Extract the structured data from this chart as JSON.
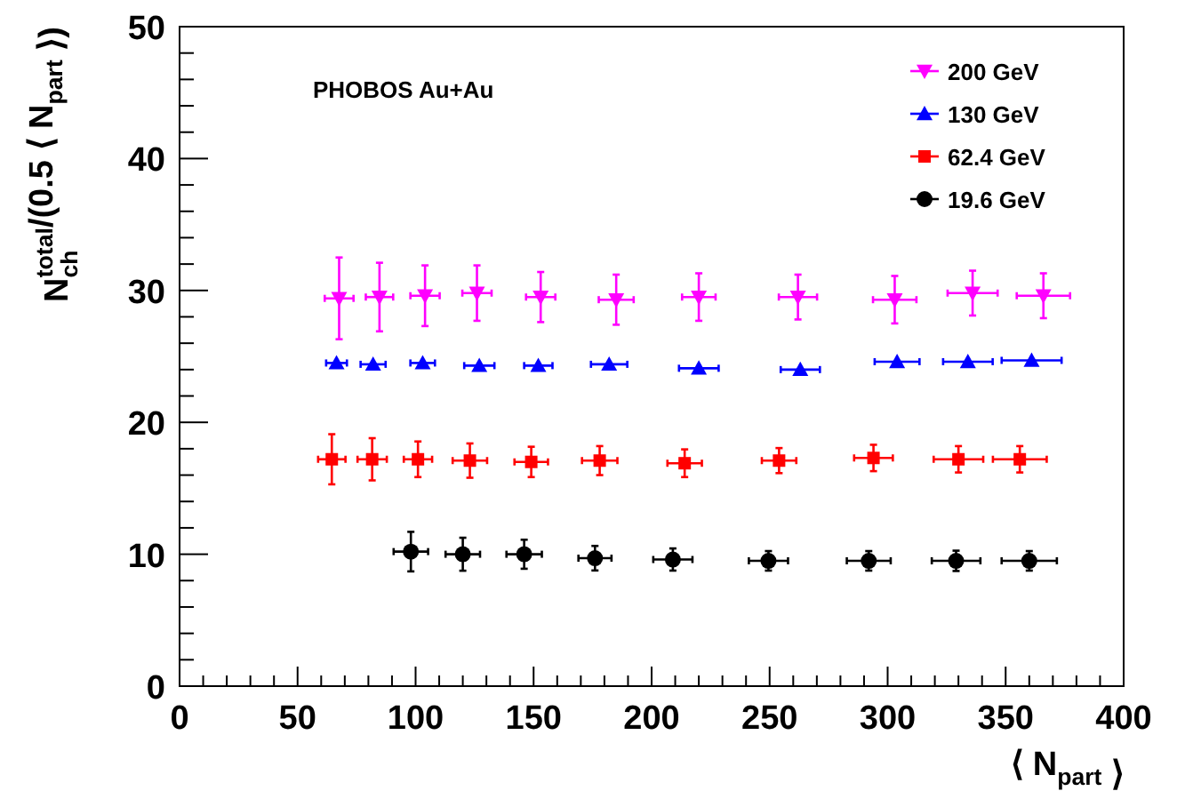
{
  "chart_data": {
    "type": "scatter",
    "xlabel": "⟨ N$_{part}$ ⟩",
    "ylabel": "N$_{ch}$$^{total}$/(0.5 ⟨ N$_{part}$ ⟩)",
    "annotations": [
      "PHOBOS Au+Au"
    ],
    "xlim": [
      0,
      400
    ],
    "ylim": [
      0,
      50
    ],
    "xticks": [
      0,
      {
        "value": 10,
        "label": null
      },
      {
        "value": 20,
        "label": null
      },
      {
        "value": 30,
        "label": null
      },
      {
        "value": 40,
        "label": null
      },
      50,
      {
        "value": 60,
        "label": null
      },
      {
        "value": 70,
        "label": null
      },
      {
        "value": 80,
        "label": null
      },
      {
        "value": 90,
        "label": null
      },
      100,
      {
        "value": 110,
        "label": null
      },
      {
        "value": 120,
        "label": null
      },
      {
        "value": 130,
        "label": null
      },
      {
        "value": 140,
        "label": null
      },
      150,
      {
        "value": 160,
        "label": null
      },
      {
        "value": 170,
        "label": null
      },
      {
        "value": 180,
        "label": null
      },
      {
        "value": 190,
        "label": null
      },
      200,
      {
        "value": 210,
        "label": null
      },
      {
        "value": 220,
        "label": null
      },
      {
        "value": 230,
        "label": null
      },
      {
        "value": 240,
        "label": null
      },
      250,
      {
        "value": 260,
        "label": null
      },
      {
        "value": 270,
        "label": null
      },
      {
        "value": 280,
        "label": null
      },
      {
        "value": 290,
        "label": null
      },
      300,
      {
        "value": 310,
        "label": null
      },
      {
        "value": 320,
        "label": null
      },
      {
        "value": 330,
        "label": null
      },
      {
        "value": 340,
        "label": null
      },
      350,
      {
        "value": 360,
        "label": null
      },
      {
        "value": 370,
        "label": null
      },
      {
        "value": 380,
        "label": null
      },
      {
        "value": 390,
        "label": null
      },
      400
    ],
    "yticks": [
      0,
      {
        "value": 2,
        "label": null
      },
      {
        "value": 4,
        "label": null
      },
      {
        "value": 6,
        "label": null
      },
      {
        "value": 8,
        "label": null
      },
      10,
      {
        "value": 12,
        "label": null
      },
      {
        "value": 14,
        "label": null
      },
      {
        "value": 16,
        "label": null
      },
      {
        "value": 18,
        "label": null
      },
      20,
      {
        "value": 22,
        "label": null
      },
      {
        "value": 24,
        "label": null
      },
      {
        "value": 26,
        "label": null
      },
      {
        "value": 28,
        "label": null
      },
      30,
      {
        "value": 32,
        "label": null
      },
      {
        "value": 34,
        "label": null
      },
      {
        "value": 36,
        "label": null
      },
      {
        "value": 38,
        "label": null
      },
      40,
      {
        "value": 42,
        "label": null
      },
      {
        "value": 44,
        "label": null
      },
      {
        "value": 46,
        "label": null
      },
      {
        "value": 48,
        "label": null
      },
      50
    ],
    "legend": "top right",
    "series": [
      {
        "name": "200 GeV",
        "color": "#ff00ff",
        "marker": "triangle-down",
        "x": [
          67.6,
          84.7,
          104,
          126,
          153,
          185,
          220,
          262,
          303,
          336,
          366
        ],
        "values": [
          29.4,
          29.5,
          29.6,
          29.8,
          29.5,
          29.3,
          29.5,
          29.5,
          29.3,
          29.8,
          29.6
        ],
        "errors": [
          3.1,
          2.6,
          2.3,
          2.1,
          1.9,
          1.9,
          1.8,
          1.7,
          1.8,
          1.7,
          1.7
        ],
        "xerrors": [
          6.1,
          5.8,
          6.2,
          6.2,
          6.2,
          7.4,
          7.1,
          8.1,
          9.2,
          10.6,
          11.3
        ]
      },
      {
        "name": "130 GeV",
        "color": "#0000ff",
        "marker": "triangle",
        "x": [
          66.5,
          82,
          103,
          127,
          152,
          182,
          220,
          263,
          304,
          334,
          361
        ],
        "values": [
          24.5,
          24.4,
          24.5,
          24.3,
          24.3,
          24.4,
          24.1,
          24.0,
          24.6,
          24.6,
          24.7
        ],
        "xerrors": [
          4.4,
          5.3,
          5.2,
          6.4,
          6.0,
          7.7,
          8.4,
          8.3,
          9.5,
          10.5,
          12.7
        ]
      },
      {
        "name": "62.4 GeV",
        "color": "#ff0000",
        "marker": "square",
        "x": [
          64.5,
          81.6,
          101,
          123,
          149,
          178,
          214,
          254,
          294,
          330,
          356
        ],
        "values": [
          17.2,
          17.2,
          17.2,
          17.1,
          17.0,
          17.1,
          16.9,
          17.1,
          17.3,
          17.2,
          17.2
        ],
        "errors": [
          1.9,
          1.6,
          1.35,
          1.3,
          1.15,
          1.1,
          1.05,
          0.95,
          1.0,
          1.0,
          1.0
        ],
        "xerrors": [
          5.8,
          6.2,
          6.0,
          7.3,
          7.1,
          7.5,
          7.3,
          7.3,
          8.2,
          10.5,
          11.4
        ]
      },
      {
        "name": "19.6 GeV",
        "color": "#000000",
        "marker": "circle",
        "x": [
          98,
          120,
          146,
          176,
          209,
          249.5,
          292,
          329,
          360
        ],
        "values": [
          10.2,
          10.0,
          10.0,
          9.7,
          9.6,
          9.5,
          9.5,
          9.5,
          9.5
        ],
        "errors": [
          1.5,
          1.25,
          1.1,
          0.93,
          0.84,
          0.74,
          0.74,
          0.77,
          0.74
        ],
        "xerrors": [
          7.3,
          7.3,
          7.5,
          7.0,
          8.3,
          8.3,
          9.3,
          10.3,
          11.7
        ]
      }
    ]
  }
}
